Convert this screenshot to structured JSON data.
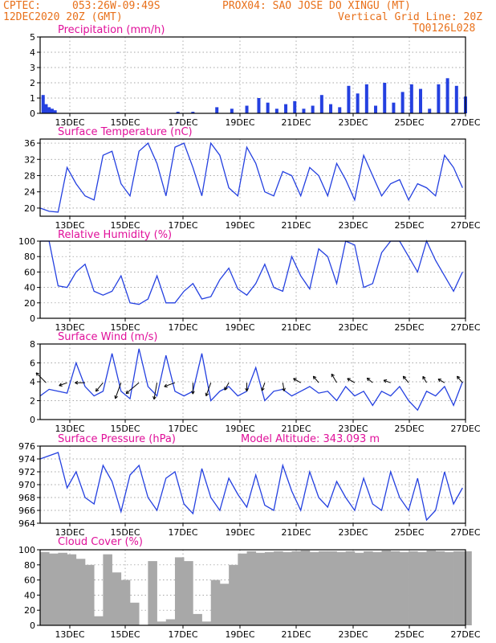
{
  "header": {
    "line1_left": "CPTEC:",
    "coords": "053:26W-09:49S",
    "station": "PROX04: SAO JOSE DO XINGU (MT)",
    "date": "12DEC2020 20Z (GMT)",
    "grid_note": "Vertical Grid Line: 20Z",
    "model_id": "TQ0126L028"
  },
  "colors": {
    "header": "#e8701a",
    "panel_title": "#e0109a",
    "line": "#2440e0",
    "precip_bar": "#2440e0",
    "cloud_fill": "#a8a8a8",
    "grid": "#888888"
  },
  "x_ticks": [
    "13DEC",
    "15DEC",
    "17DEC",
    "19DEC",
    "21DEC",
    "23DEC",
    "25DEC",
    "27DEC"
  ],
  "chart_data": [
    {
      "type": "bar",
      "title": "Precipitation (mm/h)",
      "ylim": [
        0,
        5
      ],
      "yticks": [
        0,
        1,
        2,
        3,
        4,
        5
      ],
      "x_unit": "days since 12DEC2020 20Z",
      "x": [
        0.1,
        0.2,
        0.3,
        0.4,
        0.5,
        4.6,
        5.1,
        5.9,
        6.4,
        6.9,
        7.3,
        7.6,
        7.9,
        8.2,
        8.5,
        8.8,
        9.1,
        9.4,
        9.7,
        10.0,
        10.3,
        10.6,
        10.9,
        11.2,
        11.5,
        11.8,
        12.1,
        12.4,
        12.7,
        13.0,
        13.3,
        13.6,
        13.9,
        14.2
      ],
      "values": [
        1.2,
        0.6,
        0.4,
        0.3,
        0.2,
        0.1,
        0.1,
        0.4,
        0.3,
        0.5,
        1.0,
        0.7,
        0.3,
        0.6,
        0.8,
        0.3,
        0.5,
        1.2,
        0.6,
        0.4,
        1.8,
        1.3,
        1.9,
        0.5,
        2.0,
        0.7,
        1.4,
        1.9,
        1.6,
        0.3,
        1.9,
        2.3,
        1.8,
        1.1
      ]
    },
    {
      "type": "line",
      "title": "Surface Temperature (nC)",
      "ylim": [
        18,
        37
      ],
      "yticks": [
        20,
        24,
        28,
        32,
        36
      ],
      "x": [
        0,
        0.3,
        0.6,
        0.9,
        1.2,
        1.5,
        1.8,
        2.1,
        2.4,
        2.7,
        3.0,
        3.3,
        3.6,
        3.9,
        4.2,
        4.5,
        4.8,
        5.1,
        5.4,
        5.7,
        6.0,
        6.3,
        6.6,
        6.9,
        7.2,
        7.5,
        7.8,
        8.1,
        8.4,
        8.7,
        9.0,
        9.3,
        9.6,
        9.9,
        10.2,
        10.5,
        10.8,
        11.1,
        11.4,
        11.7,
        12.0,
        12.3,
        12.6,
        12.9,
        13.2,
        13.5,
        13.8,
        14.1
      ],
      "values": [
        20,
        19.2,
        19,
        30,
        26,
        23,
        22,
        33,
        34,
        26,
        23,
        34,
        36,
        31,
        23,
        35,
        36,
        30,
        23,
        36,
        33,
        25,
        23,
        35,
        31,
        24,
        23,
        29,
        28,
        23,
        30,
        28,
        23,
        31,
        27,
        22,
        33,
        28,
        23,
        26,
        27,
        22,
        26,
        25,
        23,
        33,
        30,
        25
      ]
    },
    {
      "type": "line",
      "title": "Relative Humidity (%)",
      "ylim": [
        0,
        100
      ],
      "yticks": [
        0,
        20,
        40,
        60,
        80,
        100
      ],
      "x": [
        0,
        0.3,
        0.6,
        0.9,
        1.2,
        1.5,
        1.8,
        2.1,
        2.4,
        2.7,
        3.0,
        3.3,
        3.6,
        3.9,
        4.2,
        4.5,
        4.8,
        5.1,
        5.4,
        5.7,
        6.0,
        6.3,
        6.6,
        6.9,
        7.2,
        7.5,
        7.8,
        8.1,
        8.4,
        8.7,
        9.0,
        9.3,
        9.6,
        9.9,
        10.2,
        10.5,
        10.8,
        11.1,
        11.4,
        11.7,
        12.0,
        12.3,
        12.6,
        12.9,
        13.2,
        13.5,
        13.8,
        14.1
      ],
      "values": [
        100,
        100,
        42,
        40,
        60,
        70,
        35,
        30,
        35,
        55,
        20,
        18,
        25,
        55,
        20,
        20,
        35,
        45,
        25,
        28,
        50,
        65,
        38,
        30,
        45,
        70,
        40,
        35,
        80,
        55,
        38,
        90,
        80,
        45,
        100,
        95,
        40,
        45,
        85,
        100,
        100,
        80,
        60,
        100,
        75,
        55,
        35,
        60
      ]
    },
    {
      "type": "line",
      "title": "Surface Wind (m/s)",
      "ylim": [
        0,
        8
      ],
      "yticks": [
        0,
        2,
        4,
        6,
        8
      ],
      "x": [
        0,
        0.3,
        0.6,
        0.9,
        1.2,
        1.5,
        1.8,
        2.1,
        2.4,
        2.7,
        3.0,
        3.3,
        3.6,
        3.9,
        4.2,
        4.5,
        4.8,
        5.1,
        5.4,
        5.7,
        6.0,
        6.3,
        6.6,
        6.9,
        7.2,
        7.5,
        7.8,
        8.1,
        8.4,
        8.7,
        9.0,
        9.3,
        9.6,
        9.9,
        10.2,
        10.5,
        10.8,
        11.1,
        11.4,
        11.7,
        12.0,
        12.3,
        12.6,
        12.9,
        13.2,
        13.5,
        13.8,
        14.1
      ],
      "values": [
        2.5,
        3.2,
        3,
        2.8,
        6,
        3.5,
        2.5,
        3,
        7,
        3,
        2.2,
        7.5,
        3.5,
        2.5,
        6.8,
        3,
        2.5,
        3,
        7,
        2,
        3,
        3.5,
        2.5,
        3,
        5.5,
        2,
        3,
        3.2,
        2.5,
        3,
        3.5,
        2.8,
        3,
        2,
        3.5,
        2.5,
        3,
        1.5,
        3,
        2.5,
        3.5,
        2,
        1,
        3,
        2.5,
        3.5,
        1.5,
        4
      ]
    },
    {
      "type": "line",
      "title": "Surface Pressure (hPa)",
      "annotation": "Model Altitude: 343.093 m",
      "ylim": [
        964,
        976
      ],
      "yticks": [
        964,
        966,
        968,
        970,
        972,
        974,
        976
      ],
      "x": [
        0,
        0.3,
        0.6,
        0.9,
        1.2,
        1.5,
        1.8,
        2.1,
        2.4,
        2.7,
        3.0,
        3.3,
        3.6,
        3.9,
        4.2,
        4.5,
        4.8,
        5.1,
        5.4,
        5.7,
        6.0,
        6.3,
        6.6,
        6.9,
        7.2,
        7.5,
        7.8,
        8.1,
        8.4,
        8.7,
        9.0,
        9.3,
        9.6,
        9.9,
        10.2,
        10.5,
        10.8,
        11.1,
        11.4,
        11.7,
        12.0,
        12.3,
        12.6,
        12.9,
        13.2,
        13.5,
        13.8,
        14.1
      ],
      "values": [
        974,
        974.5,
        975,
        969.5,
        972,
        968,
        967,
        973,
        970.5,
        965.8,
        971.5,
        973,
        968,
        966,
        971,
        972,
        967,
        965.5,
        972.5,
        968,
        966,
        971,
        968.5,
        966.5,
        971.5,
        966.8,
        966,
        973,
        969,
        966,
        972,
        968,
        966.5,
        970.5,
        968,
        966,
        971,
        967,
        966,
        972,
        968,
        966,
        971,
        964.5,
        966,
        972,
        967,
        969.5
      ]
    },
    {
      "type": "area",
      "title": "Cloud Cover (%)",
      "ylim": [
        0,
        100
      ],
      "yticks": [
        0,
        20,
        40,
        60,
        80,
        100
      ],
      "x": [
        0,
        0.3,
        0.6,
        0.9,
        1.2,
        1.5,
        1.8,
        2.1,
        2.4,
        2.7,
        3.0,
        3.3,
        3.6,
        3.9,
        4.2,
        4.5,
        4.8,
        5.1,
        5.4,
        5.7,
        6.0,
        6.3,
        6.6,
        6.9,
        7.2,
        7.5,
        7.8,
        8.1,
        8.4,
        8.7,
        9.0,
        9.3,
        9.6,
        9.9,
        10.2,
        10.5,
        10.8,
        11.1,
        11.4,
        11.7,
        12.0,
        12.3,
        12.6,
        12.9,
        13.2,
        13.5,
        13.8,
        14.1
      ],
      "values": [
        97,
        95,
        96,
        94,
        88,
        80,
        12,
        94,
        70,
        60,
        30,
        0,
        85,
        5,
        8,
        90,
        85,
        15,
        5,
        60,
        55,
        80,
        95,
        98,
        96,
        97,
        98,
        97,
        98,
        99,
        97,
        98,
        98,
        97,
        98,
        96,
        98,
        97,
        99,
        98,
        97,
        98,
        97,
        99,
        98,
        97,
        98,
        98
      ]
    }
  ],
  "wind_vectors": {
    "x": [
      0.2,
      0.9,
      1.5,
      2.1,
      2.7,
      3.3,
      3.9,
      4.5,
      5.1,
      5.7,
      6.3,
      6.9,
      7.5,
      8.1,
      8.7,
      9.3,
      9.9,
      10.5,
      11.1,
      11.7,
      12.3,
      12.9,
      13.5,
      14.1
    ],
    "direction_deg": [
      315,
      250,
      270,
      220,
      200,
      230,
      190,
      250,
      180,
      200,
      210,
      180,
      200,
      170,
      300,
      320,
      330,
      300,
      310,
      290,
      320,
      330,
      300,
      320
    ],
    "speed": [
      2.5,
      1.5,
      1.8,
      2,
      3,
      3,
      3,
      2,
      2,
      2.5,
      1.5,
      1.5,
      1.5,
      1.5,
      1.5,
      1.5,
      1.8,
      1.5,
      1.3,
      1.3,
      1.5,
      1.3,
      1.3,
      1.5
    ]
  }
}
